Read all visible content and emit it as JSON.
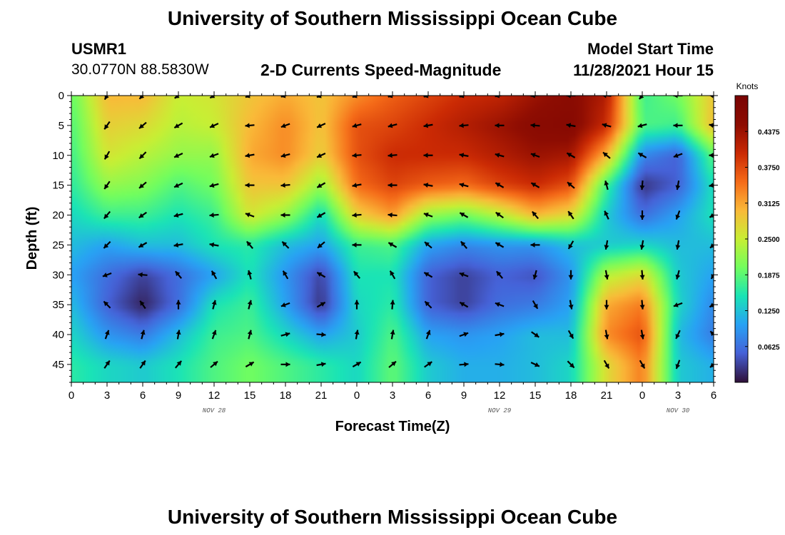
{
  "header": {
    "title": "University of Southern Mississippi Ocean Cube",
    "station_id": "USMR1",
    "coordinates": "30.0770N  88.5830W",
    "subtitle": "2-D Currents Speed-Magnitude",
    "model_label": "Model Start Time",
    "model_time": "11/28/2021 Hour 15",
    "bottom_title": "University of Southern Mississippi Ocean Cube"
  },
  "chart_data": {
    "type": "heatmap",
    "title": "2-D Currents Speed-Magnitude",
    "xlabel": "Forecast Time(Z)",
    "ylabel": "Depth (ft)",
    "x_tick_labels": [
      "0",
      "3",
      "6",
      "9",
      "12",
      "15",
      "18",
      "21",
      "0",
      "3",
      "6",
      "9",
      "12",
      "15",
      "18",
      "21",
      "0",
      "3",
      "6"
    ],
    "x_date_labels": [
      {
        "label": "NOV 28",
        "tick_index": 4
      },
      {
        "label": "NOV 29",
        "tick_index": 12
      },
      {
        "label": "NOV 30",
        "tick_index": 17
      }
    ],
    "y_ticks": [
      0,
      5,
      10,
      15,
      20,
      25,
      30,
      35,
      40,
      45
    ],
    "ylim": [
      0,
      48
    ],
    "colorbar": {
      "unit": "Knots",
      "range": [
        0,
        0.5
      ],
      "tick_labels": [
        "0.4375",
        "0.3750",
        "0.3125",
        "0.2500",
        "0.1875",
        "0.1250",
        "0.0625"
      ],
      "tick_values": [
        0.4375,
        0.375,
        0.3125,
        0.25,
        0.1875,
        0.125,
        0.0625
      ]
    },
    "depths": [
      0,
      5,
      10,
      15,
      20,
      25,
      30,
      35,
      40,
      45
    ],
    "times_hours": [
      0,
      3,
      6,
      9,
      12,
      15,
      18,
      21,
      24,
      27,
      30,
      33,
      36,
      39,
      42,
      45,
      48,
      51,
      54
    ],
    "speed_knots": [
      [
        0.19,
        0.3,
        0.3,
        0.25,
        0.26,
        0.29,
        0.31,
        0.29,
        0.33,
        0.36,
        0.38,
        0.4,
        0.41,
        0.44,
        0.46,
        0.42,
        0.17,
        0.2,
        0.29
      ],
      [
        0.18,
        0.28,
        0.27,
        0.24,
        0.25,
        0.3,
        0.33,
        0.29,
        0.37,
        0.38,
        0.4,
        0.42,
        0.44,
        0.46,
        0.47,
        0.4,
        0.18,
        0.17,
        0.3
      ],
      [
        0.17,
        0.26,
        0.24,
        0.22,
        0.22,
        0.31,
        0.33,
        0.28,
        0.37,
        0.4,
        0.4,
        0.4,
        0.42,
        0.44,
        0.43,
        0.3,
        0.08,
        0.05,
        0.19
      ],
      [
        0.16,
        0.22,
        0.21,
        0.18,
        0.2,
        0.29,
        0.29,
        0.22,
        0.35,
        0.38,
        0.36,
        0.35,
        0.38,
        0.4,
        0.37,
        0.17,
        0.02,
        0.05,
        0.15
      ],
      [
        0.14,
        0.17,
        0.17,
        0.15,
        0.17,
        0.26,
        0.22,
        0.14,
        0.28,
        0.32,
        0.22,
        0.2,
        0.24,
        0.3,
        0.27,
        0.13,
        0.06,
        0.1,
        0.15
      ],
      [
        0.12,
        0.1,
        0.12,
        0.12,
        0.15,
        0.16,
        0.12,
        0.1,
        0.17,
        0.18,
        0.1,
        0.08,
        0.09,
        0.09,
        0.12,
        0.13,
        0.14,
        0.12,
        0.12
      ],
      [
        0.1,
        0.06,
        0.03,
        0.06,
        0.1,
        0.15,
        0.09,
        0.03,
        0.15,
        0.15,
        0.05,
        0.03,
        0.05,
        0.04,
        0.09,
        0.24,
        0.27,
        0.13,
        0.1
      ],
      [
        0.12,
        0.05,
        0.01,
        0.06,
        0.15,
        0.17,
        0.1,
        0.02,
        0.14,
        0.16,
        0.05,
        0.03,
        0.06,
        0.07,
        0.1,
        0.31,
        0.34,
        0.14,
        0.08
      ],
      [
        0.14,
        0.09,
        0.07,
        0.12,
        0.17,
        0.18,
        0.14,
        0.1,
        0.13,
        0.18,
        0.1,
        0.09,
        0.1,
        0.12,
        0.12,
        0.33,
        0.37,
        0.12,
        0.07
      ],
      [
        0.16,
        0.14,
        0.13,
        0.15,
        0.18,
        0.2,
        0.18,
        0.16,
        0.14,
        0.19,
        0.13,
        0.11,
        0.11,
        0.12,
        0.14,
        0.27,
        0.34,
        0.13,
        0.11
      ]
    ],
    "direction_deg": [
      [
        200,
        210,
        225,
        235,
        240,
        250,
        255,
        250,
        250,
        255,
        255,
        255,
        260,
        265,
        270,
        275,
        220,
        270,
        275
      ],
      [
        210,
        215,
        230,
        240,
        245,
        265,
        250,
        245,
        255,
        255,
        260,
        265,
        270,
        275,
        280,
        285,
        255,
        270,
        280
      ],
      [
        195,
        210,
        225,
        245,
        250,
        260,
        255,
        245,
        265,
        265,
        270,
        280,
        285,
        290,
        300,
        310,
        300,
        250,
        270
      ],
      [
        200,
        215,
        230,
        245,
        255,
        270,
        265,
        240,
        260,
        270,
        280,
        285,
        300,
        300,
        310,
        345,
        185,
        190,
        260
      ],
      [
        210,
        220,
        235,
        255,
        265,
        290,
        270,
        240,
        265,
        275,
        290,
        300,
        305,
        320,
        325,
        335,
        180,
        200,
        240
      ],
      [
        220,
        225,
        240,
        260,
        280,
        320,
        315,
        230,
        270,
        300,
        310,
        320,
        300,
        270,
        210,
        190,
        190,
        190,
        230
      ],
      [
        225,
        250,
        275,
        320,
        330,
        345,
        330,
        300,
        320,
        330,
        300,
        290,
        320,
        195,
        180,
        170,
        175,
        195,
        210
      ],
      [
        240,
        315,
        325,
        0,
        15,
        15,
        250,
        60,
        0,
        5,
        315,
        300,
        290,
        150,
        170,
        180,
        175,
        250,
        240
      ],
      [
        20,
        20,
        15,
        10,
        20,
        15,
        75,
        95,
        10,
        10,
        20,
        70,
        80,
        125,
        150,
        170,
        170,
        205,
        315
      ],
      [
        20,
        35,
        35,
        40,
        50,
        60,
        90,
        80,
        60,
        50,
        55,
        85,
        95,
        115,
        135,
        150,
        150,
        200,
        230
      ]
    ]
  }
}
